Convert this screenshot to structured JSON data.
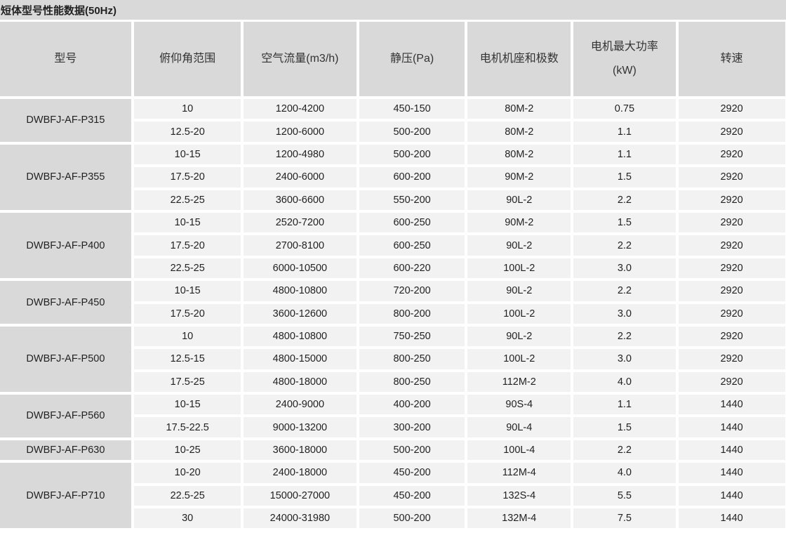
{
  "title": "短体型号性能数据(50Hz)",
  "headers": [
    "型号",
    "俯仰角范围",
    "空气流量(m3/h)",
    "静压(Pa)",
    "电机机座和极数",
    "电机最大功率",
    "(kW)",
    "转速"
  ],
  "groups": [
    {
      "model": "DWBFJ-AF-P315",
      "rows": [
        [
          "10",
          "1200-4200",
          "450-150",
          "80M-2",
          "0.75",
          "2920"
        ],
        [
          "12.5-20",
          "1200-6000",
          "500-200",
          "80M-2",
          "1.1",
          "2920"
        ]
      ]
    },
    {
      "model": "DWBFJ-AF-P355",
      "rows": [
        [
          "10-15",
          "1200-4980",
          "500-200",
          "80M-2",
          "1.1",
          "2920"
        ],
        [
          "17.5-20",
          "2400-6000",
          "600-200",
          "90M-2",
          "1.5",
          "2920"
        ],
        [
          "22.5-25",
          "3600-6600",
          "550-200",
          "90L-2",
          "2.2",
          "2920"
        ]
      ]
    },
    {
      "model": "DWBFJ-AF-P400",
      "rows": [
        [
          "10-15",
          "2520-7200",
          "600-250",
          "90M-2",
          "1.5",
          "2920"
        ],
        [
          "17.5-20",
          "2700-8100",
          "600-250",
          "90L-2",
          "2.2",
          "2920"
        ],
        [
          "22.5-25",
          "6000-10500",
          "600-220",
          "100L-2",
          "3.0",
          "2920"
        ]
      ]
    },
    {
      "model": "DWBFJ-AF-P450",
      "rows": [
        [
          "10-15",
          "4800-10800",
          "720-200",
          "90L-2",
          "2.2",
          "2920"
        ],
        [
          "17.5-20",
          "3600-12600",
          "800-200",
          "100L-2",
          "3.0",
          "2920"
        ]
      ]
    },
    {
      "model": "DWBFJ-AF-P500",
      "rows": [
        [
          "10",
          "4800-10800",
          "750-250",
          "90L-2",
          "2.2",
          "2920"
        ],
        [
          "12.5-15",
          "4800-15000",
          "800-250",
          "100L-2",
          "3.0",
          "2920"
        ],
        [
          "17.5-25",
          "4800-18000",
          "800-250",
          "112M-2",
          "4.0",
          "2920"
        ]
      ]
    },
    {
      "model": "DWBFJ-AF-P560",
      "rows": [
        [
          "10-15",
          "2400-9000",
          "400-200",
          "90S-4",
          "1.1",
          "1440"
        ],
        [
          "17.5-22.5",
          "9000-13200",
          "300-200",
          "90L-4",
          "1.5",
          "1440"
        ]
      ]
    },
    {
      "model": "DWBFJ-AF-P630",
      "rows": [
        [
          "10-25",
          "3600-18000",
          "500-200",
          "100L-4",
          "2.2",
          "1440"
        ]
      ]
    },
    {
      "model": "DWBFJ-AF-P710",
      "rows": [
        [
          "10-20",
          "2400-18000",
          "450-200",
          "112M-4",
          "4.0",
          "1440"
        ],
        [
          "22.5-25",
          "15000-27000",
          "450-200",
          "132S-4",
          "5.5",
          "1440"
        ],
        [
          "30",
          "24000-31980",
          "500-200",
          "132M-4",
          "7.5",
          "1440"
        ]
      ]
    }
  ]
}
